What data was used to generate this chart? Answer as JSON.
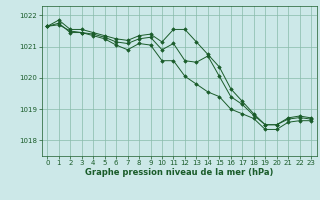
{
  "background_color": "#cce8e8",
  "grid_color": "#88bbaa",
  "line_color": "#1a5c2a",
  "marker_color": "#1a5c2a",
  "xlabel": "Graphe pression niveau de la mer (hPa)",
  "ylim": [
    1017.5,
    1022.3
  ],
  "yticks": [
    1018,
    1019,
    1020,
    1021,
    1022
  ],
  "xticks": [
    0,
    1,
    2,
    3,
    4,
    5,
    6,
    7,
    8,
    9,
    10,
    11,
    12,
    13,
    14,
    15,
    16,
    17,
    18,
    19,
    20,
    21,
    22,
    23
  ],
  "series1": {
    "x": [
      0,
      1,
      2,
      3,
      4,
      5,
      6,
      7,
      8,
      9,
      10,
      11,
      12,
      13,
      14,
      15,
      16,
      17,
      18,
      19,
      20,
      21,
      22,
      23
    ],
    "y": [
      1021.65,
      1021.85,
      1021.55,
      1021.55,
      1021.45,
      1021.35,
      1021.25,
      1021.2,
      1021.35,
      1021.4,
      1021.15,
      1021.55,
      1021.55,
      1021.15,
      1020.75,
      1020.35,
      1019.65,
      1019.25,
      1018.85,
      1018.5,
      1018.5,
      1018.72,
      1018.78,
      1018.72
    ]
  },
  "series2": {
    "x": [
      0,
      1,
      2,
      3,
      4,
      5,
      6,
      7,
      8,
      9,
      10,
      11,
      12,
      13,
      14,
      15,
      16,
      17,
      18,
      19,
      20,
      21,
      22,
      23
    ],
    "y": [
      1021.65,
      1021.75,
      1021.45,
      1021.45,
      1021.4,
      1021.3,
      1021.15,
      1021.1,
      1021.25,
      1021.3,
      1020.9,
      1021.1,
      1020.55,
      1020.5,
      1020.7,
      1020.05,
      1019.4,
      1019.15,
      1018.8,
      1018.5,
      1018.5,
      1018.68,
      1018.73,
      1018.68
    ]
  },
  "series3": {
    "x": [
      0,
      1,
      2,
      3,
      4,
      5,
      6,
      7,
      8,
      9,
      10,
      11,
      12,
      13,
      14,
      15,
      16,
      17,
      18,
      19,
      20,
      21,
      22,
      23
    ],
    "y": [
      1021.65,
      1021.7,
      1021.5,
      1021.45,
      1021.35,
      1021.25,
      1021.05,
      1020.9,
      1021.1,
      1021.05,
      1020.55,
      1020.55,
      1020.05,
      1019.8,
      1019.55,
      1019.4,
      1019.0,
      1018.85,
      1018.7,
      1018.35,
      1018.35,
      1018.58,
      1018.63,
      1018.63
    ]
  }
}
